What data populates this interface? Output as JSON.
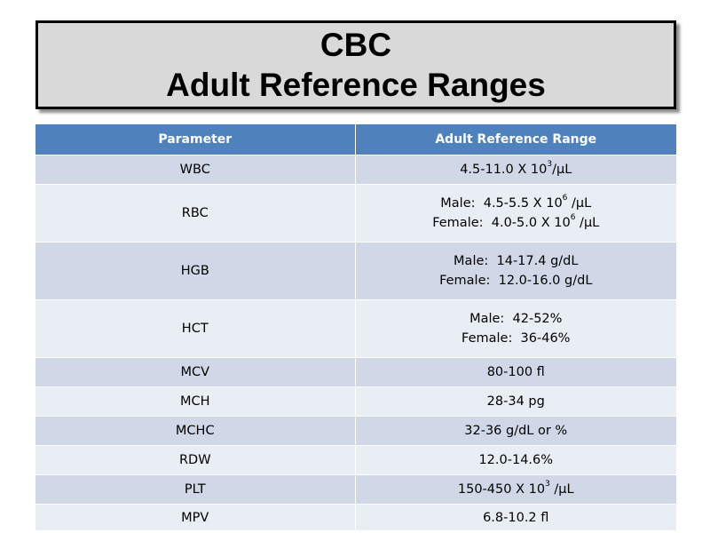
{
  "title": {
    "line1": "CBC",
    "line2": "Adult Reference Ranges"
  },
  "table": {
    "headers": [
      "Parameter",
      "Adult Reference Range"
    ],
    "rows": [
      {
        "parameter": "WBC",
        "range": [
          {
            "pre": "4.5-11.0 X 10",
            "sup": "3",
            "post": "/µL"
          }
        ]
      },
      {
        "parameter": "RBC",
        "range": [
          {
            "pre": "Male:  4.5-5.5 X 10",
            "sup": "6",
            "post": " /µL"
          },
          {
            "pre": "Female:  4.0-5.0 X 10",
            "sup": "6",
            "post": " /µL"
          }
        ]
      },
      {
        "parameter": "HGB",
        "range": [
          {
            "pre": "Male:  14-17.4 g/dL",
            "sup": "",
            "post": ""
          },
          {
            "pre": "Female:  12.0-16.0 g/dL",
            "sup": "",
            "post": ""
          }
        ]
      },
      {
        "parameter": "HCT",
        "range": [
          {
            "pre": "Male:  42-52%",
            "sup": "",
            "post": ""
          },
          {
            "pre": "Female:  36-46%",
            "sup": "",
            "post": ""
          }
        ]
      },
      {
        "parameter": "MCV",
        "range": [
          {
            "pre": "80-100 fl",
            "sup": "",
            "post": ""
          }
        ]
      },
      {
        "parameter": "MCH",
        "range": [
          {
            "pre": "28-34 pg",
            "sup": "",
            "post": ""
          }
        ]
      },
      {
        "parameter": "MCHC",
        "range": [
          {
            "pre": "32-36 g/dL or %",
            "sup": "",
            "post": ""
          }
        ]
      },
      {
        "parameter": "RDW",
        "range": [
          {
            "pre": "12.0-14.6%",
            "sup": "",
            "post": ""
          }
        ]
      },
      {
        "parameter": "PLT",
        "range": [
          {
            "pre": "150-450 X 10",
            "sup": "3",
            "post": " /µL"
          }
        ]
      },
      {
        "parameter": "MPV",
        "range": [
          {
            "pre": "6.8-10.2 fl",
            "sup": "",
            "post": ""
          }
        ]
      }
    ]
  },
  "colors": {
    "header_bg": "#4f81bd",
    "band_dark": "#d0d8e8",
    "band_light": "#e9edf4",
    "title_bg": "#d9d9d9"
  }
}
